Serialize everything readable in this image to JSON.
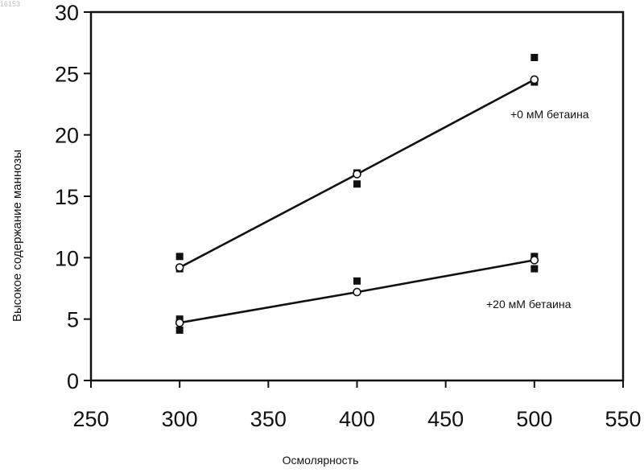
{
  "figure_id": "16153",
  "chart_data": {
    "type": "scatter",
    "title": "",
    "xlabel": "Осмолярность",
    "ylabel": "Высокое содержание маннозы",
    "xlim": [
      250,
      550
    ],
    "ylim": [
      0,
      30
    ],
    "xticks": [
      250,
      300,
      350,
      400,
      450,
      500,
      550
    ],
    "yticks": [
      0,
      5,
      10,
      15,
      20,
      25,
      30
    ],
    "grid": false,
    "series": [
      {
        "name": "+0 мМ бетаина",
        "points": [
          [
            300,
            10.1
          ],
          [
            300,
            9.1
          ],
          [
            400,
            16.0
          ],
          [
            400,
            16.9
          ],
          [
            500,
            26.3
          ],
          [
            500,
            24.3
          ]
        ],
        "fit": [
          [
            300,
            9.2
          ],
          [
            400,
            16.8
          ],
          [
            500,
            24.5
          ]
        ]
      },
      {
        "name": "+20 мМ бетаина",
        "points": [
          [
            300,
            5.0
          ],
          [
            300,
            4.1
          ],
          [
            400,
            8.1
          ],
          [
            500,
            10.1
          ],
          [
            500,
            9.1
          ]
        ],
        "fit": [
          [
            300,
            4.7
          ],
          [
            400,
            7.2
          ],
          [
            500,
            9.8
          ]
        ]
      }
    ]
  }
}
